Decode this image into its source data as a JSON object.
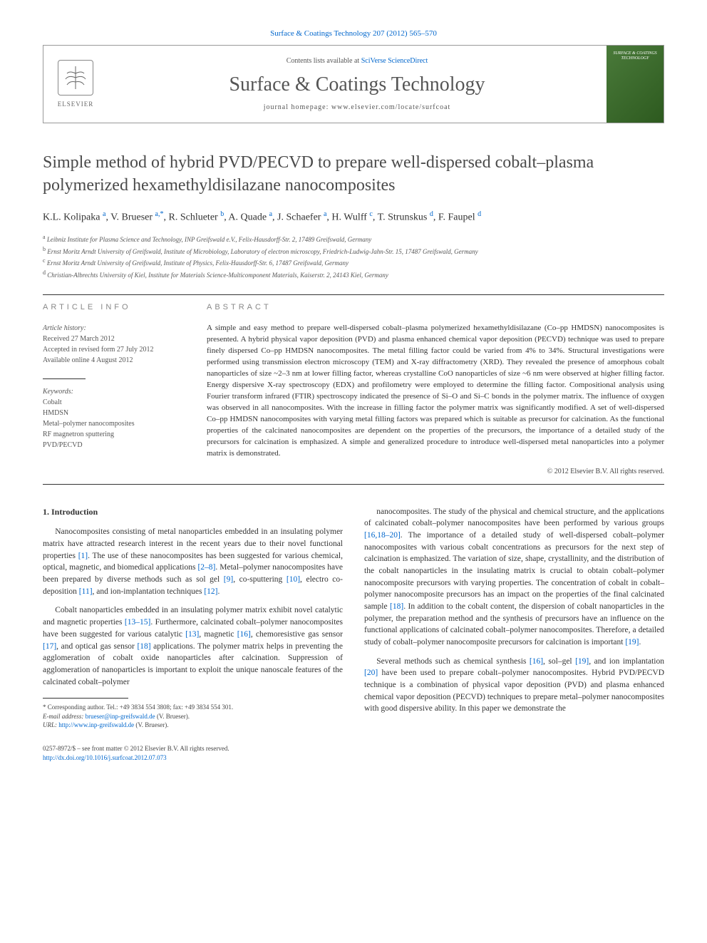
{
  "top_link": {
    "prefix": "",
    "text": "Surface & Coatings Technology 207 (2012) 565–570"
  },
  "header": {
    "elsevier_label": "ELSEVIER",
    "contents_prefix": "Contents lists available at ",
    "contents_link": "SciVerse ScienceDirect",
    "journal_name": "Surface & Coatings Technology",
    "homepage_label": "journal homepage: www.elsevier.com/locate/surfcoat",
    "cover_small_text": "SURFACE & COATINGS TECHNOLOGY"
  },
  "title": "Simple method of hybrid PVD/PECVD to prepare well-dispersed cobalt–plasma polymerized hexamethyldisilazane nanocomposites",
  "authors": [
    {
      "name": "K.L. Kolipaka",
      "aff": "a"
    },
    {
      "name": "V. Brueser",
      "aff": "a,",
      "corr": "*"
    },
    {
      "name": "R. Schlueter",
      "aff": "b"
    },
    {
      "name": "A. Quade",
      "aff": "a"
    },
    {
      "name": "J. Schaefer",
      "aff": "a"
    },
    {
      "name": "H. Wulff",
      "aff": "c"
    },
    {
      "name": "T. Strunskus",
      "aff": "d"
    },
    {
      "name": "F. Faupel",
      "aff": "d"
    }
  ],
  "affiliations": [
    {
      "key": "a",
      "text": "Leibniz Institute for Plasma Science and Technology, INP Greifswald e.V., Felix-Hausdorff-Str. 2, 17489 Greifswald, Germany"
    },
    {
      "key": "b",
      "text": "Ernst Moritz Arndt University of Greifswald, Institute of Microbiology, Laboratory of electron microscopy, Friedrich-Ludwig-Jahn-Str. 15, 17487 Greifswald, Germany"
    },
    {
      "key": "c",
      "text": "Ernst Moritz Arndt University of Greifswald, Institute of Physics, Felix-Hausdorff-Str. 6, 17487 Greifswald, Germany"
    },
    {
      "key": "d",
      "text": "Christian-Albrechts University of Kiel, Institute for Materials Science-Multicomponent Materials, Kaiserstr. 2, 24143 Kiel, Germany"
    }
  ],
  "info": {
    "label": "ARTICLE INFO",
    "history_head": "Article history:",
    "history": [
      "Received 27 March 2012",
      "Accepted in revised form 27 July 2012",
      "Available online 4 August 2012"
    ],
    "keywords_head": "Keywords:",
    "keywords": [
      "Cobalt",
      "HMDSN",
      "Metal–polymer nanocomposites",
      "RF magnetron sputtering",
      "PVD/PECVD"
    ]
  },
  "abstract": {
    "label": "ABSTRACT",
    "text": "A simple and easy method to prepare well-dispersed cobalt–plasma polymerized hexamethyldisilazane (Co–pp HMDSN) nanocomposites is presented. A hybrid physical vapor deposition (PVD) and plasma enhanced chemical vapor deposition (PECVD) technique was used to prepare finely dispersed Co–pp HMDSN nanocomposites. The metal filling factor could be varied from 4% to 34%. Structural investigations were performed using transmission electron microscopy (TEM) and X-ray diffractometry (XRD). They revealed the presence of amorphous cobalt nanoparticles of size ~2–3 nm at lower filling factor, whereas crystalline CoO nanoparticles of size ~6 nm were observed at higher filling factor. Energy dispersive X-ray spectroscopy (EDX) and profilometry were employed to determine the filling factor. Compositional analysis using Fourier transform infrared (FTIR) spectroscopy indicated the presence of Si–O and Si–C bonds in the polymer matrix. The influence of oxygen was observed in all nanocomposites. With the increase in filling factor the polymer matrix was significantly modified. A set of well-dispersed Co–pp HMDSN nanocomposites with varying metal filling factors was prepared which is suitable as precursor for calcination. As the functional properties of the calcinated nanocomposites are dependent on the properties of the precursors, the importance of a detailed study of the precursors for calcination is emphasized. A simple and generalized procedure to introduce well-dispersed metal nanoparticles into a polymer matrix is demonstrated.",
    "copyright": "© 2012 Elsevier B.V. All rights reserved."
  },
  "section1": {
    "heading": "1. Introduction",
    "paras_left": [
      "Nanocomposites consisting of metal nanoparticles embedded in an insulating polymer matrix have attracted research interest in the recent years due to their novel functional properties [1]. The use of these nanocomposites has been suggested for various chemical, optical, magnetic, and biomedical applications [2–8]. Metal–polymer nanocomposites have been prepared by diverse methods such as sol gel [9], co-sputtering [10], electro co-deposition [11], and ion-implantation techniques [12].",
      "Cobalt nanoparticles embedded in an insulating polymer matrix exhibit novel catalytic and magnetic properties [13–15]. Furthermore, calcinated cobalt–polymer nanocomposites have been suggested for various catalytic [13], magnetic [16], chemoresistive gas sensor [17], and optical gas sensor [18] applications. The polymer matrix helps in preventing the agglomeration of cobalt oxide nanoparticles after calcination. Suppression of agglomeration of nanoparticles is important to exploit the unique nanoscale features of the calcinated cobalt–polymer"
    ],
    "paras_right": [
      "nanocomposites. The study of the physical and chemical structure, and the applications of calcinated cobalt–polymer nanocomposites have been performed by various groups [16,18–20]. The importance of a detailed study of well-dispersed cobalt–polymer nanocomposites with various cobalt concentrations as precursors for the next step of calcination is emphasized. The variation of size, shape, crystallinity, and the distribution of the cobalt nanoparticles in the insulating matrix is crucial to obtain cobalt–polymer nanocomposite precursors with varying properties. The concentration of cobalt in cobalt–polymer nanocomposite precursors has an impact on the properties of the final calcinated sample [18]. In addition to the cobalt content, the dispersion of cobalt nanoparticles in the polymer, the preparation method and the synthesis of precursors have an influence on the functional applications of calcinated cobalt–polymer nanocomposites. Therefore, a detailed study of cobalt–polymer nanocomposite precursors for calcination is important [19].",
      "Several methods such as chemical synthesis [16], sol–gel [19], and ion implantation [20] have been used to prepare cobalt–polymer nanocomposites. Hybrid PVD/PECVD technique is a combination of physical vapor deposition (PVD) and plasma enhanced chemical vapor deposition (PECVD) techniques to prepare metal–polymer nanocomposites with good dispersive ability. In this paper we demonstrate the"
    ]
  },
  "footnote": {
    "corr_label": "* Corresponding author. Tel.: +49 3834 554 3808; fax: +49 3834 554 301.",
    "email_label": "E-mail address:",
    "email": "brueser@inp-greifswald.de",
    "email_who": "(V. Brueser).",
    "url_label": "URL:",
    "url": "http://www.inp-greifswald.de",
    "url_who": "(V. Brueser)."
  },
  "bottom": {
    "issn_line": "0257-8972/$ – see front matter © 2012 Elsevier B.V. All rights reserved.",
    "doi": "http://dx.doi.org/10.1016/j.surfcoat.2012.07.073"
  },
  "colors": {
    "link": "#0066cc",
    "text": "#333333",
    "muted": "#555555",
    "cover_bg_from": "#4a7a3a",
    "cover_bg_to": "#2d5a1f"
  }
}
